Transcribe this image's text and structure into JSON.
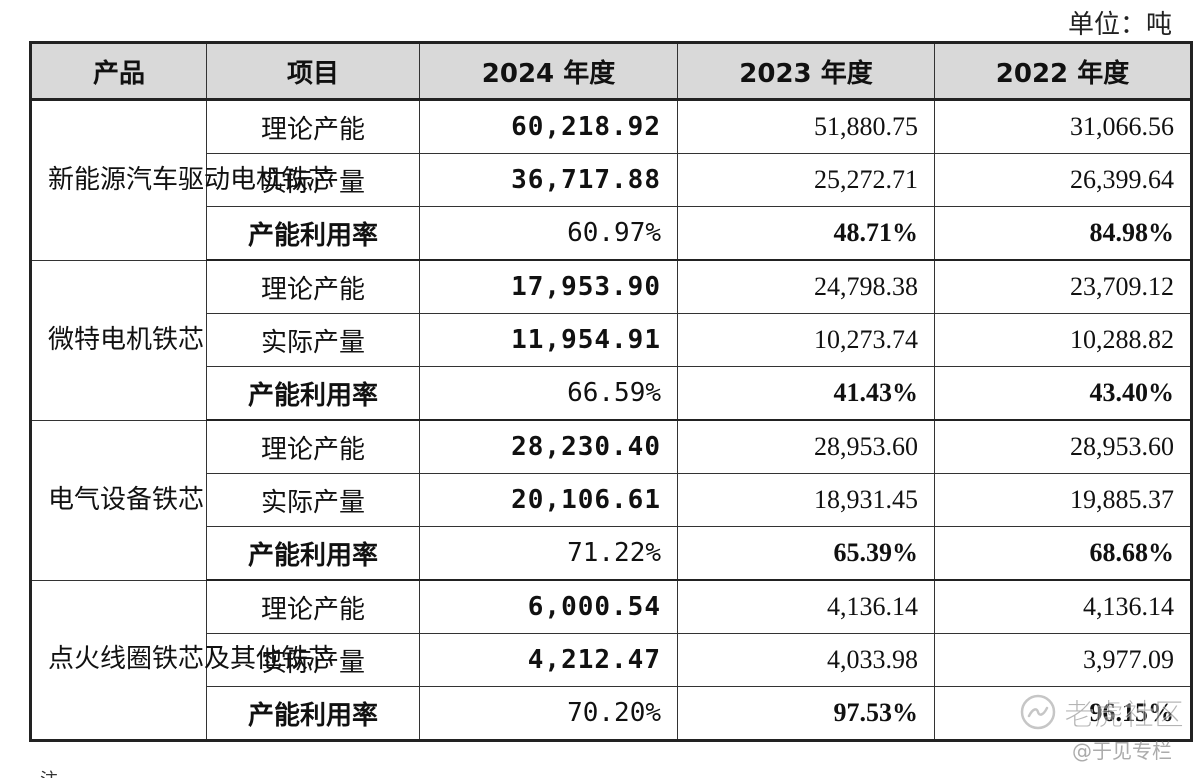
{
  "unit_label": "单位：吨",
  "header": {
    "product": "产品",
    "item": "项目",
    "y2024": "2024 年度",
    "y2023": "2023 年度",
    "y2022": "2022 年度"
  },
  "groups": [
    {
      "product": "新能源汽车驱动电机铁芯",
      "rows": [
        {
          "item": "理论产能",
          "y2024": "60,218.92",
          "y2023": "51,880.75",
          "y2022": "31,066.56"
        },
        {
          "item": "实际产量",
          "y2024": "36,717.88",
          "y2023": "25,272.71",
          "y2022": "26,399.64"
        },
        {
          "item": "产能利用率",
          "y2024": "60.97%",
          "y2023": "48.71%",
          "y2022": "84.98%"
        }
      ]
    },
    {
      "product": "微特电机铁芯",
      "rows": [
        {
          "item": "理论产能",
          "y2024": "17,953.90",
          "y2023": "24,798.38",
          "y2022": "23,709.12"
        },
        {
          "item": "实际产量",
          "y2024": "11,954.91",
          "y2023": "10,273.74",
          "y2022": "10,288.82"
        },
        {
          "item": "产能利用率",
          "y2024": "66.59%",
          "y2023": "41.43%",
          "y2022": "43.40%"
        }
      ]
    },
    {
      "product": "电气设备铁芯",
      "rows": [
        {
          "item": "理论产能",
          "y2024": "28,230.40",
          "y2023": "28,953.60",
          "y2022": "28,953.60"
        },
        {
          "item": "实际产量",
          "y2024": "20,106.61",
          "y2023": "18,931.45",
          "y2022": "19,885.37"
        },
        {
          "item": "产能利用率",
          "y2024": "71.22%",
          "y2023": "65.39%",
          "y2022": "68.68%"
        }
      ]
    },
    {
      "product": "点火线圈铁芯及其他铁芯",
      "rows": [
        {
          "item": "理论产能",
          "y2024": "6,000.54",
          "y2023": "4,136.14",
          "y2022": "4,136.14"
        },
        {
          "item": "实际产量",
          "y2024": "4,212.47",
          "y2023": "4,033.98",
          "y2022": "3,977.09"
        },
        {
          "item": "产能利用率",
          "y2024": "70.20%",
          "y2023": "97.53%",
          "y2022": "96.15%"
        }
      ]
    }
  ],
  "footnote": "注",
  "watermark": {
    "name": "老虎社区",
    "sub": "@于见专栏"
  }
}
